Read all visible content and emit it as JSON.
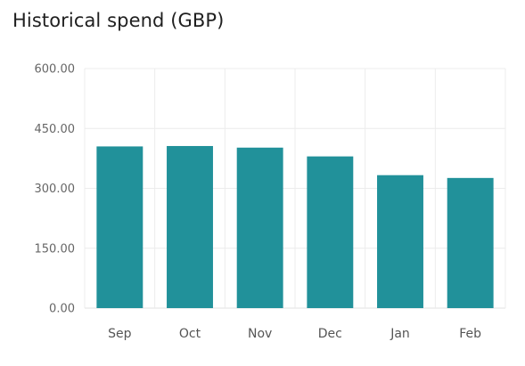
{
  "title": "Historical spend (GBP)",
  "colors": {
    "bar": "#21919a",
    "grid": "#ececec",
    "axis": "#e2e2e2"
  },
  "chart_data": {
    "type": "bar",
    "title": "Historical spend (GBP)",
    "xlabel": "",
    "ylabel": "",
    "categories": [
      "Sep",
      "Oct",
      "Nov",
      "Dec",
      "Jan",
      "Feb"
    ],
    "values": [
      405,
      406,
      402,
      380,
      333,
      326
    ],
    "ylim": [
      0,
      600
    ],
    "yticks": [
      "0.00",
      "150.00",
      "300.00",
      "450.00",
      "600.00"
    ],
    "grid": true,
    "legend": "none"
  }
}
